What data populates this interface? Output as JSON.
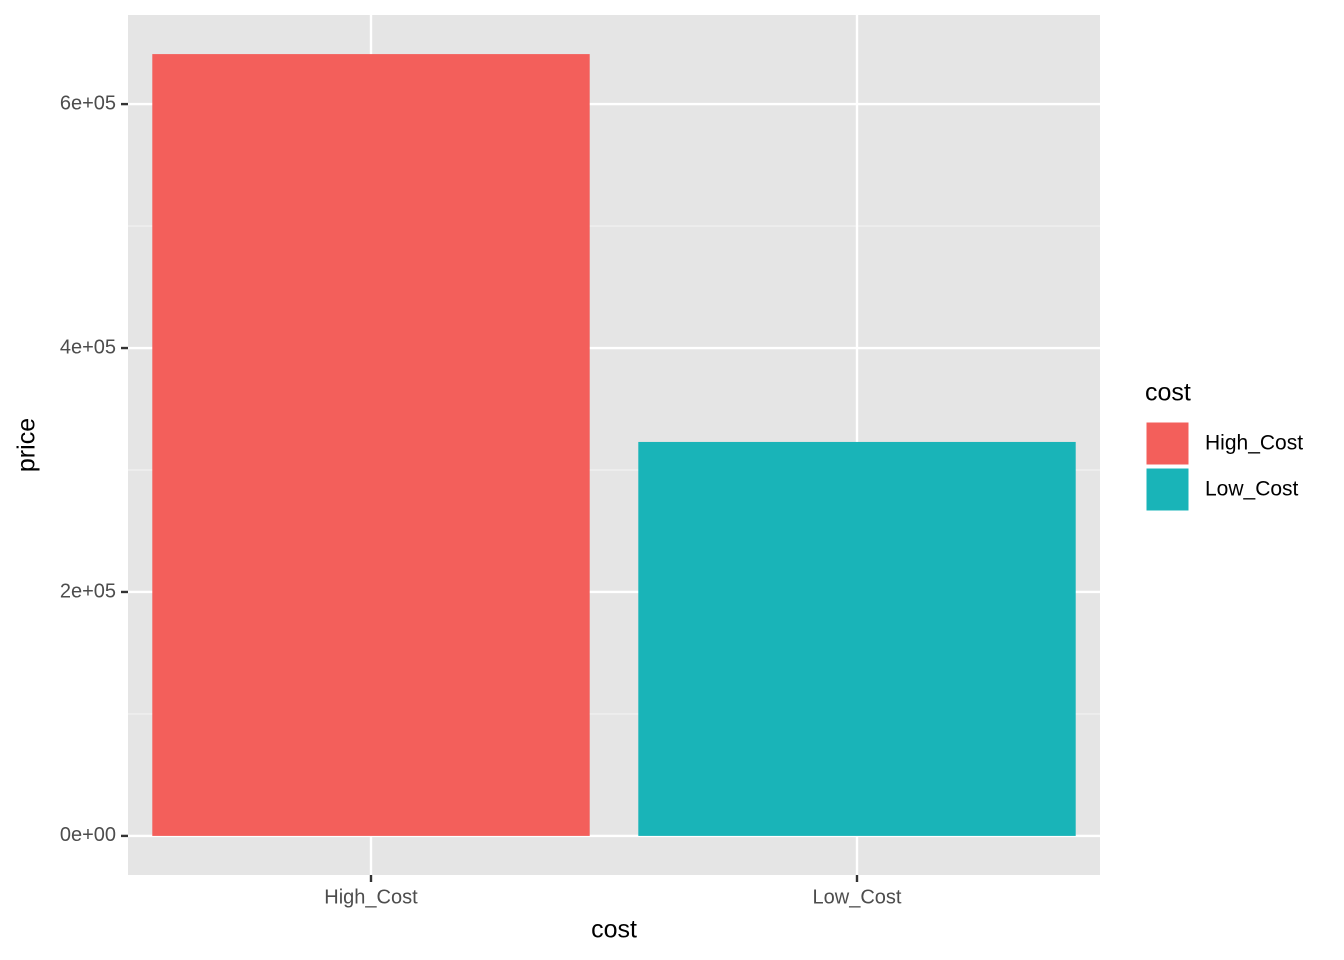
{
  "chart_data": {
    "type": "bar",
    "x_label": "cost",
    "y_label": "price",
    "categories": [
      "High_Cost",
      "Low_Cost"
    ],
    "values": [
      641000,
      323000
    ],
    "colors": [
      "#f35f5b",
      "#19b4b8"
    ],
    "legend_title": "cost",
    "ylim": [
      -32050,
      673050
    ],
    "yticks": [
      {
        "value": 0,
        "label": "0e+00"
      },
      {
        "value": 200000,
        "label": "2e+05"
      },
      {
        "value": 400000,
        "label": "4e+05"
      },
      {
        "value": 600000,
        "label": "6e+05"
      }
    ],
    "minor_yticks": [
      100000,
      300000,
      500000
    ],
    "grid": true,
    "legend": "right"
  }
}
